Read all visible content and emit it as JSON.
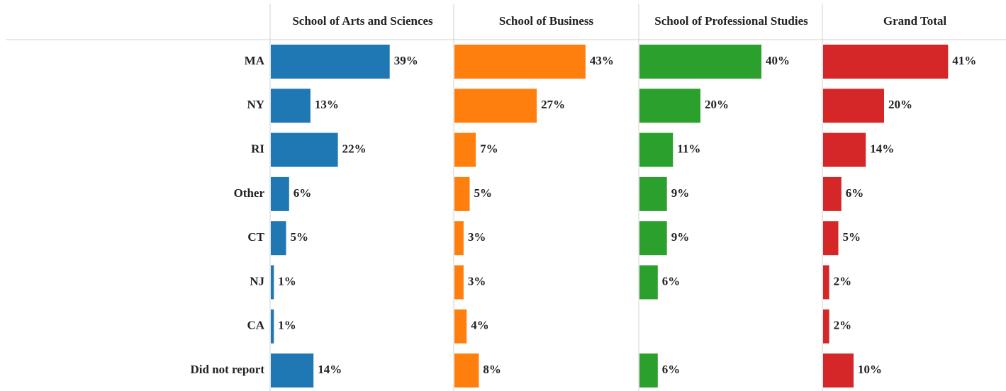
{
  "chart_data": [
    {
      "type": "bar",
      "title": "School of Arts and Sciences",
      "color": "#1f77b4",
      "categories": [
        "MA",
        "NY",
        "RI",
        "Other",
        "CT",
        "NJ",
        "CA",
        "Did not report"
      ],
      "values": [
        39,
        13,
        22,
        6,
        5,
        1,
        1,
        14
      ],
      "value_labels": [
        "39%",
        "13%",
        "22%",
        "6%",
        "5%",
        "1%",
        "1%",
        "14%"
      ]
    },
    {
      "type": "bar",
      "title": "School of Business",
      "color": "#ff7f0e",
      "values": [
        43,
        27,
        7,
        5,
        3,
        3,
        4,
        8
      ],
      "value_labels": [
        "43%",
        "27%",
        "7%",
        "5%",
        "3%",
        "3%",
        "4%",
        "8%"
      ]
    },
    {
      "type": "bar",
      "title": "School of Professional Studies",
      "color": "#2ca02c",
      "values": [
        40,
        20,
        11,
        9,
        9,
        6,
        null,
        6
      ],
      "value_labels": [
        "40%",
        "20%",
        "11%",
        "9%",
        "9%",
        "6%",
        null,
        "6%"
      ]
    },
    {
      "type": "bar",
      "title": "Grand Total",
      "color": "#d62728",
      "values": [
        41,
        20,
        14,
        6,
        5,
        2,
        2,
        10
      ],
      "value_labels": [
        "41%",
        "20%",
        "14%",
        "6%",
        "5%",
        "2%",
        "2%",
        "10%"
      ]
    }
  ]
}
